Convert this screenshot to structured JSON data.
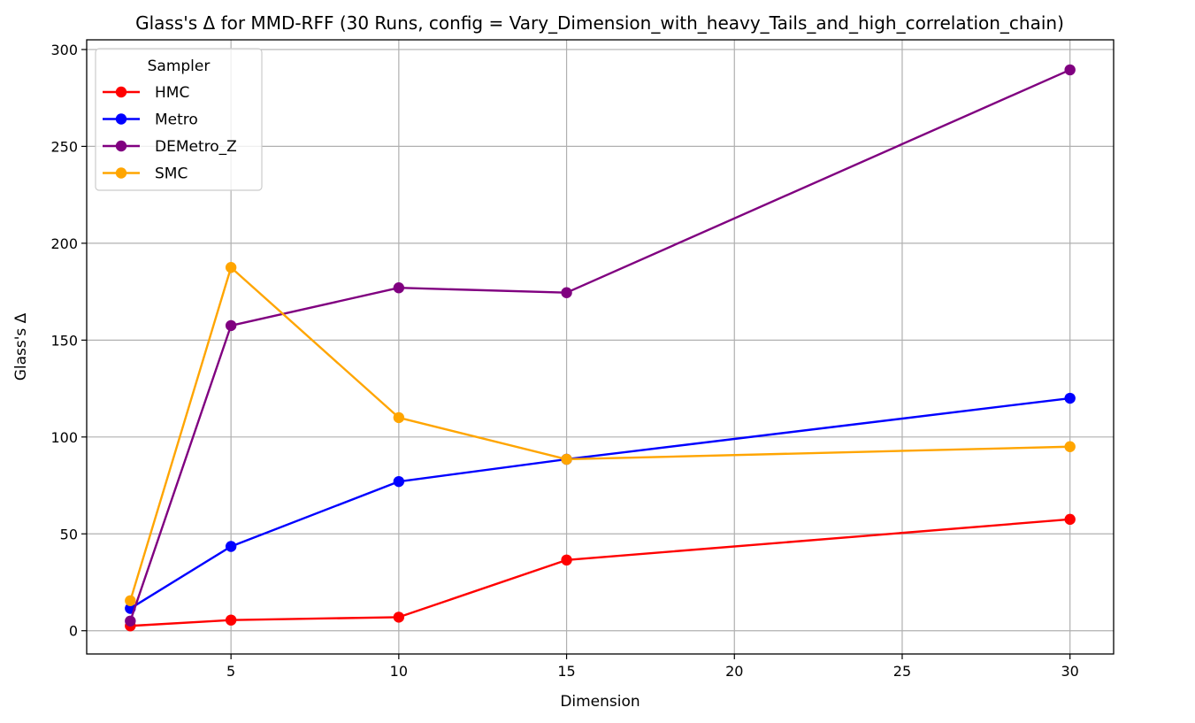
{
  "chart_data": {
    "type": "line",
    "title": "Glass's Δ for MMD-RFF (30 Runs, config = Vary_Dimension_with_heavy_Tails_and_high_correlation_chain)",
    "xlabel": "Dimension",
    "ylabel": "Glass's Δ",
    "xlim": [
      0.7,
      31.3
    ],
    "ylim": [
      -12,
      305
    ],
    "xticks": [
      5,
      10,
      15,
      20,
      25,
      30
    ],
    "yticks": [
      0,
      50,
      100,
      150,
      200,
      250,
      300
    ],
    "grid": true,
    "legend": {
      "title": "Sampler",
      "placement": "top-left"
    },
    "x": [
      2,
      5,
      10,
      15,
      30
    ],
    "series": [
      {
        "name": "HMC",
        "color": "#ff0000",
        "values": [
          2.5,
          5.5,
          7.0,
          36.5,
          57.5
        ]
      },
      {
        "name": "Metro",
        "color": "#0000ff",
        "values": [
          11.5,
          43.5,
          77.0,
          88.5,
          120.0
        ]
      },
      {
        "name": "DEMetro_Z",
        "color": "#800080",
        "values": [
          5.0,
          157.5,
          177.0,
          174.5,
          289.5
        ]
      },
      {
        "name": "SMC",
        "color": "#ffa500",
        "values": [
          15.5,
          187.5,
          110.0,
          88.5,
          95.0
        ]
      }
    ]
  }
}
